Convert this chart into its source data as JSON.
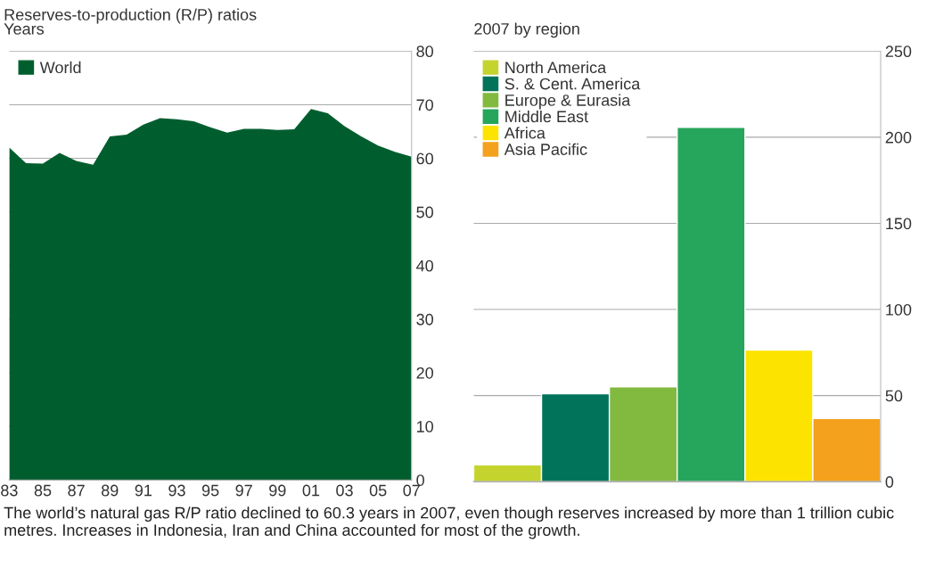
{
  "chart_data": [
    {
      "type": "area",
      "title": "Reserves-to-production (R/P) ratios",
      "ylabel": "Years",
      "x": [
        1983,
        1984,
        1985,
        1986,
        1987,
        1988,
        1989,
        1990,
        1991,
        1992,
        1993,
        1994,
        1995,
        1996,
        1997,
        1998,
        1999,
        2000,
        2001,
        2002,
        2003,
        2004,
        2005,
        2006,
        2007
      ],
      "series": [
        {
          "name": "World",
          "color": "#005e2e",
          "values": [
            62.0,
            59.1,
            59.0,
            61.0,
            59.5,
            58.8,
            64.1,
            64.4,
            66.3,
            67.5,
            67.3,
            66.9,
            65.8,
            64.8,
            65.5,
            65.5,
            65.3,
            65.4,
            69.2,
            68.4,
            66.0,
            64.1,
            62.4,
            61.2,
            60.3
          ]
        }
      ],
      "xlim": [
        1983,
        2007
      ],
      "xticks": [
        {
          "value": 1983,
          "label": "83"
        },
        {
          "value": 1985,
          "label": "85"
        },
        {
          "value": 1987,
          "label": "87"
        },
        {
          "value": 1989,
          "label": "89"
        },
        {
          "value": 1991,
          "label": "91"
        },
        {
          "value": 1993,
          "label": "93"
        },
        {
          "value": 1995,
          "label": "95"
        },
        {
          "value": 1997,
          "label": "97"
        },
        {
          "value": 1999,
          "label": "99"
        },
        {
          "value": 2001,
          "label": "01"
        },
        {
          "value": 2003,
          "label": "03"
        },
        {
          "value": 2005,
          "label": "05"
        },
        {
          "value": 2007,
          "label": "07"
        }
      ],
      "ylim": [
        0,
        80
      ],
      "yticks": [
        0,
        10,
        20,
        30,
        40,
        50,
        60,
        70,
        80
      ],
      "grid": "y",
      "legend": "top left",
      "annotations": [
        "The world’s natural gas R/P ratio declined to 60.3 years in 2007, even though reserves increased by more than 1 trillion cubic metres. Increases in Indonesia, Iran and China accounted for most of the growth."
      ]
    },
    {
      "type": "bar",
      "title": "2007 by region",
      "categories": [
        null,
        null,
        null,
        null,
        null,
        null
      ],
      "series": [
        {
          "name": "North America",
          "color": "#c5d32e",
          "values": [
            9.8,
            null,
            null,
            null,
            null,
            null
          ]
        },
        {
          "name": "S. & Cent. America",
          "color": "#00735a",
          "values": [
            null,
            51.0,
            null,
            null,
            null,
            null
          ]
        },
        {
          "name": "Europe & Eurasia",
          "color": "#82b93f",
          "values": [
            null,
            null,
            55.1,
            null,
            null,
            null
          ]
        },
        {
          "name": "Middle East",
          "color": "#26a55c",
          "values": [
            null,
            null,
            null,
            205.7,
            null,
            null
          ]
        },
        {
          "name": "Africa",
          "color": "#fde400",
          "values": [
            null,
            null,
            null,
            null,
            76.4,
            null
          ]
        },
        {
          "name": "Asia Pacific",
          "color": "#f4a11d",
          "values": [
            null,
            null,
            null,
            null,
            null,
            36.7
          ]
        }
      ],
      "ylim": [
        0,
        250
      ],
      "yticks": [
        0,
        50,
        100,
        150,
        200,
        250
      ],
      "grid": "y",
      "legend": "top left",
      "tick_labels": "y"
    }
  ]
}
